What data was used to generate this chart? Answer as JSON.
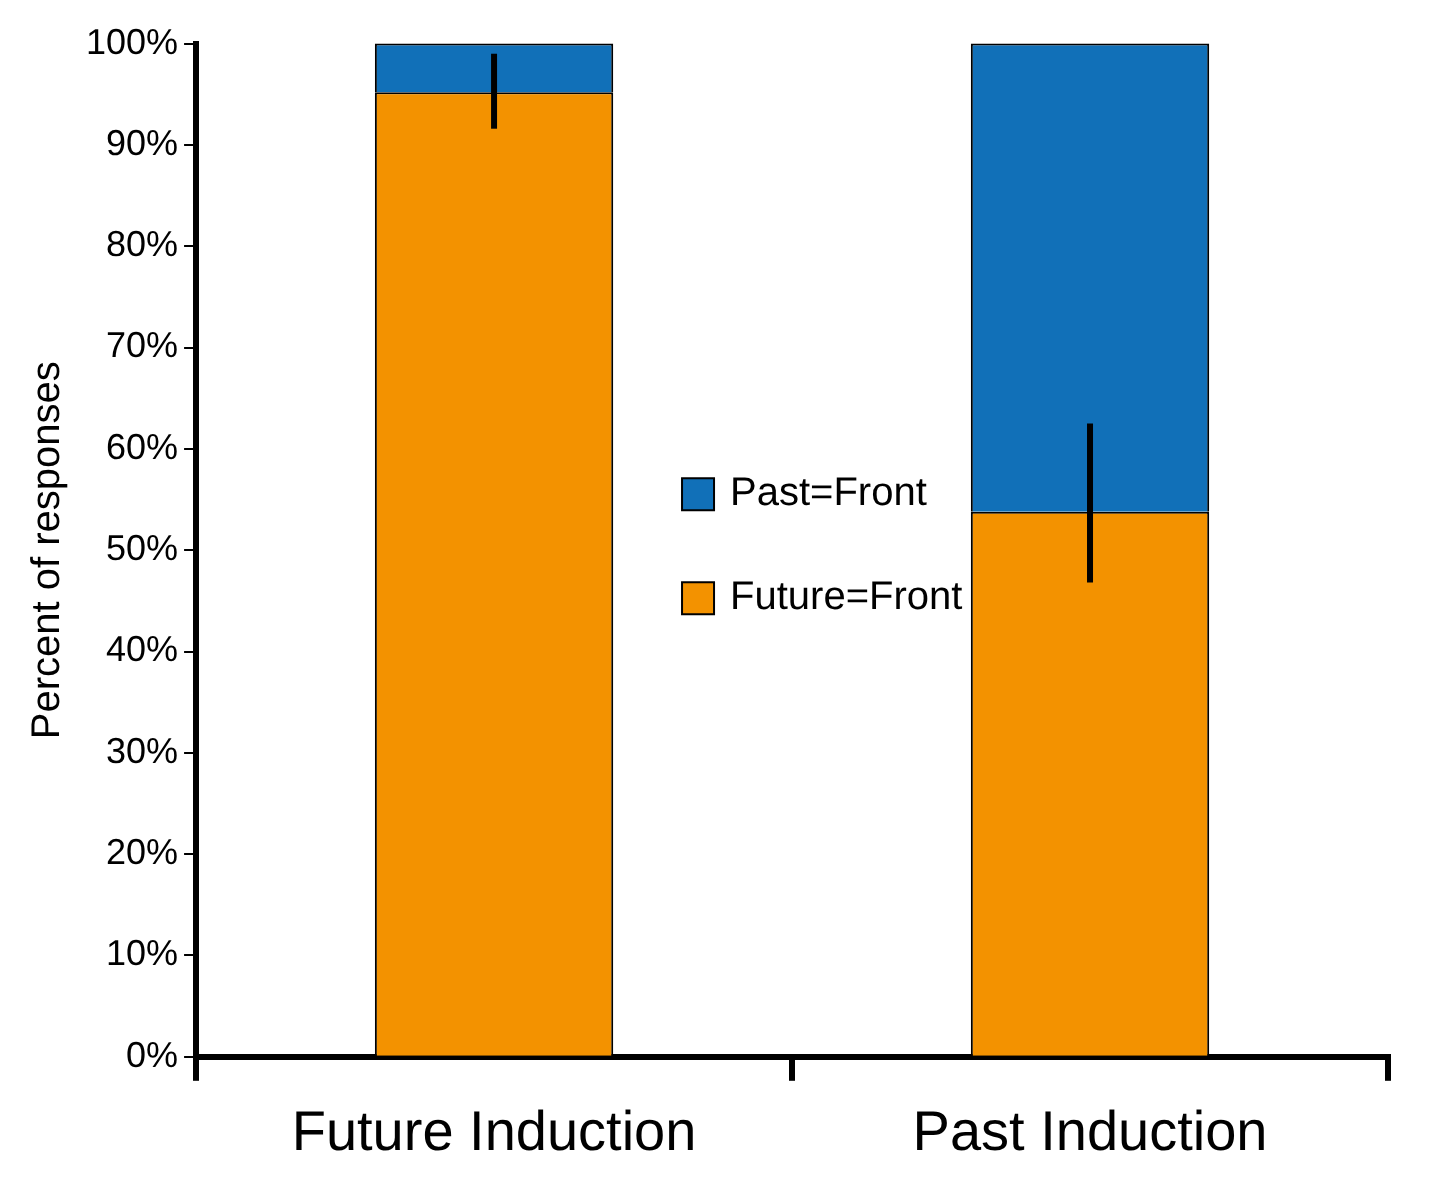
{
  "chart_data": {
    "type": "bar",
    "stacked": true,
    "ylabel": "Percent of responses",
    "categories": [
      "Future Induction",
      "Past Induction"
    ],
    "series": [
      {
        "name": "Future=Front",
        "color": "#f39200",
        "values": [
          95.2,
          53.8
        ],
        "errors": [
          [
            91.6,
            99
          ],
          [
            46.8,
            62.5
          ]
        ]
      },
      {
        "name": "Past=Front",
        "color": "#1170b8",
        "values": [
          4.8,
          46.2
        ]
      }
    ],
    "ylim": [
      0,
      100
    ],
    "yticks": [
      {
        "value": 0,
        "label": "0%"
      },
      {
        "value": 10,
        "label": "10%"
      },
      {
        "value": 20,
        "label": "20%"
      },
      {
        "value": 30,
        "label": "30%"
      },
      {
        "value": 40,
        "label": "40%"
      },
      {
        "value": 50,
        "label": "50%"
      },
      {
        "value": 60,
        "label": "60%"
      },
      {
        "value": 70,
        "label": "70%"
      },
      {
        "value": 80,
        "label": "80%"
      },
      {
        "value": 90,
        "label": "90%"
      },
      {
        "value": 100,
        "label": "100%"
      }
    ],
    "grid": false,
    "legend": "center"
  }
}
